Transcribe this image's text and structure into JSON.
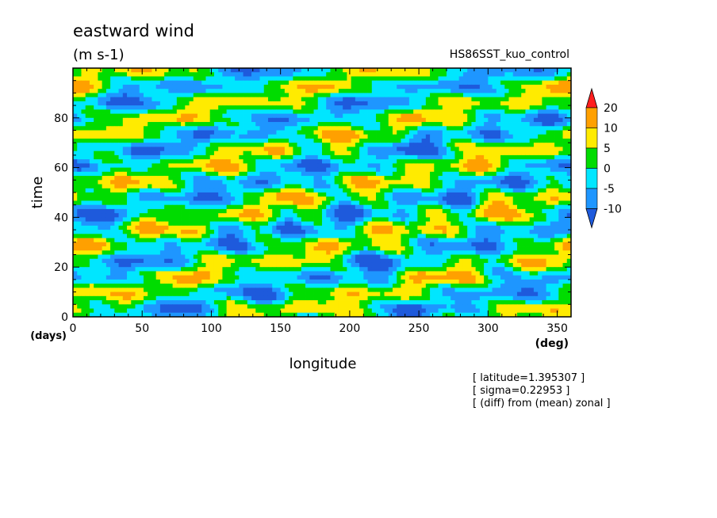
{
  "chart_data": {
    "type": "heatmap",
    "title": "eastward wind",
    "units": "(m s-1)",
    "experiment": "HS86SST_kuo_control",
    "xlabel": "longitude",
    "xunit": "(deg)",
    "ylabel": "time",
    "yunit": "(days)",
    "xlim": [
      0,
      360
    ],
    "ylim": [
      0,
      100
    ],
    "xticks": [
      0,
      50,
      100,
      150,
      200,
      250,
      300,
      350
    ],
    "yticks": [
      0,
      20,
      40,
      60,
      80
    ],
    "colorbar": {
      "levels": [
        -10,
        -5,
        0,
        5,
        10,
        20
      ],
      "labels": [
        "20",
        "10",
        "5",
        "0",
        "-5",
        "-10"
      ],
      "bands": [
        {
          "range": "<-10",
          "color": "#1e5adc"
        },
        {
          "range": "-10..-5",
          "color": "#1e96ff"
        },
        {
          "range": "-5..0",
          "color": "#00e6ff"
        },
        {
          "range": "0..5",
          "color": "#00dc00"
        },
        {
          "range": "5..10",
          "color": "#ffeb00"
        },
        {
          "range": "10..20",
          "color": "#ffa000"
        },
        {
          "range": ">20",
          "color": "#ff1e1e"
        }
      ]
    },
    "annotations": [
      "[ latitude=1.395307 ]",
      "[ sigma=0.22953 ]",
      "[ (diff) from (mean) zonal ]"
    ]
  }
}
